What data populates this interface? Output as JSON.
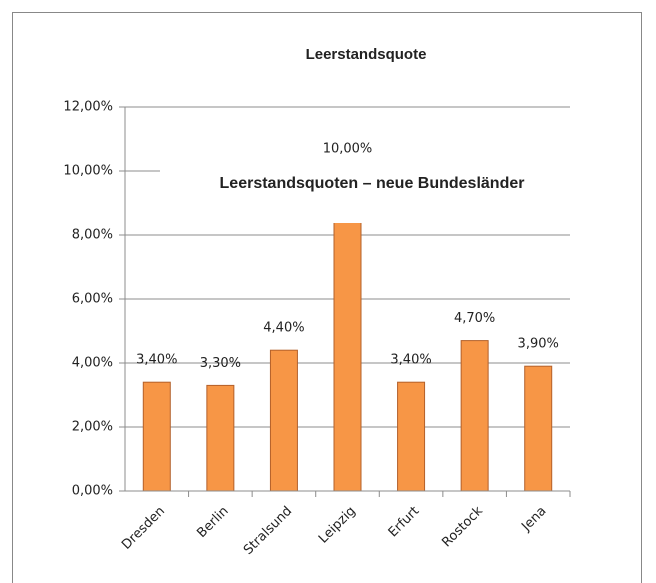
{
  "chart_data": {
    "type": "bar",
    "title": "Leerstandsquote",
    "annotation": "Leerstandsquoten – neue Bundesländer",
    "categories": [
      "Dresden",
      "Berlin",
      "Stralsund",
      "Leipzig",
      "Erfurt",
      "Rostock",
      "Jena"
    ],
    "values": [
      3.4,
      3.3,
      4.4,
      10,
      3.4,
      4.7,
      3.9
    ],
    "value_labels": [
      "3,40%",
      "3,30%",
      "4,40%",
      "10,00%",
      "3,40%",
      "4,70%",
      "3,90%"
    ],
    "color": "#f79646",
    "ylim": [
      0,
      12
    ],
    "yticks": [
      {
        "value": 0,
        "label": "0,00%"
      },
      {
        "value": 2,
        "label": "2,00%"
      },
      {
        "value": 4,
        "label": "4,00%"
      },
      {
        "value": 6,
        "label": "6,00%"
      },
      {
        "value": 8,
        "label": "8,00%"
      },
      {
        "value": 10,
        "label": "10,00%"
      },
      {
        "value": 12,
        "label": "12,00%"
      }
    ],
    "grid": true
  }
}
